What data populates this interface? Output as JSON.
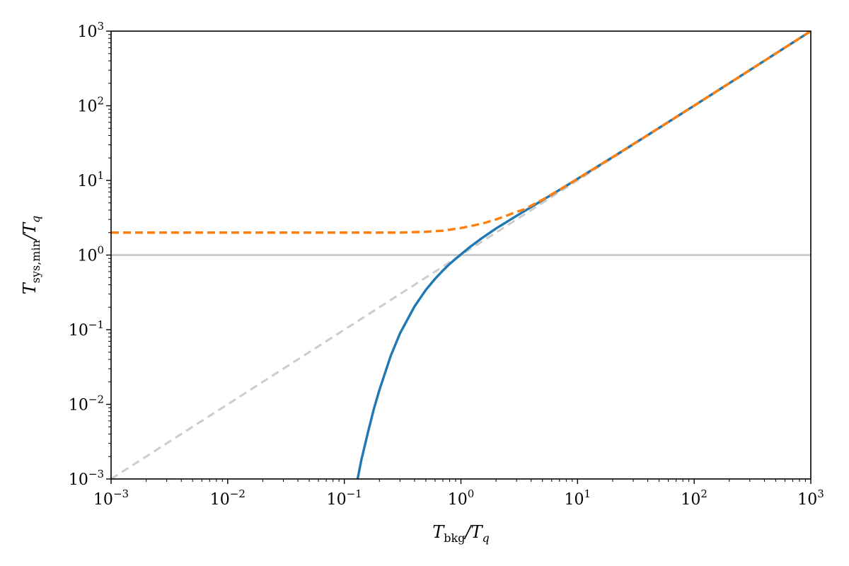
{
  "chart_data": {
    "type": "line",
    "xscale": "log",
    "yscale": "log",
    "xlim": [
      0.001,
      1000
    ],
    "ylim": [
      0.001,
      1000
    ],
    "grid": false,
    "xlabel": {
      "main": "T",
      "sub": "bkg",
      "rest": "/T",
      "rest_sub": "q"
    },
    "ylabel": {
      "main": "T",
      "sub": "sys,min",
      "rest": "/T",
      "rest_sub": "q"
    },
    "xtick_exponents": [
      -3,
      -2,
      -1,
      0,
      1,
      2,
      3
    ],
    "ytick_exponents": [
      -3,
      -2,
      -1,
      0,
      1,
      2,
      3
    ],
    "tick_base": "10",
    "reference_lines": [
      {
        "kind": "horizontal",
        "y": 1,
        "color": "#cccccc",
        "style": "solid"
      },
      {
        "kind": "diagonal",
        "relation": "y = x",
        "color": "#cccccc",
        "style": "dashed"
      }
    ],
    "series": [
      {
        "color": "#1f77b4",
        "style": "solid",
        "x": [
          0.13,
          0.14,
          0.16,
          0.18,
          0.2,
          0.25,
          0.3,
          0.4,
          0.5,
          0.6,
          0.7,
          0.8,
          0.9,
          1.0,
          1.2,
          1.5,
          2,
          3,
          4,
          5,
          7,
          10,
          20,
          50,
          100,
          200,
          500,
          1000
        ],
        "y": [
          0.001,
          0.0018,
          0.0043,
          0.0089,
          0.0156,
          0.0446,
          0.089,
          0.205,
          0.341,
          0.48,
          0.62,
          0.76,
          0.89,
          1.02,
          1.29,
          1.67,
          2.27,
          3.35,
          4.39,
          5.43,
          7.46,
          10.5,
          20.5,
          50.5,
          100.5,
          200.5,
          500.5,
          1000
        ]
      },
      {
        "color": "#ff7f0e",
        "style": "dashed",
        "x": [
          0.001,
          0.01,
          0.05,
          0.1,
          0.2,
          0.3,
          0.5,
          0.7,
          1.0,
          1.3,
          1.6,
          2,
          2.5,
          3,
          3.5,
          4,
          5,
          7,
          10,
          20,
          50,
          100,
          200,
          500,
          1000
        ],
        "y": [
          2.0,
          2.0,
          2.0,
          2.0,
          2.0,
          2.0,
          2.05,
          2.12,
          2.3,
          2.5,
          2.7,
          3.0,
          3.4,
          3.8,
          4.1,
          4.6,
          5.5,
          7.5,
          10.5,
          20.5,
          50.5,
          100.5,
          200.5,
          500.5,
          1000
        ]
      }
    ]
  }
}
